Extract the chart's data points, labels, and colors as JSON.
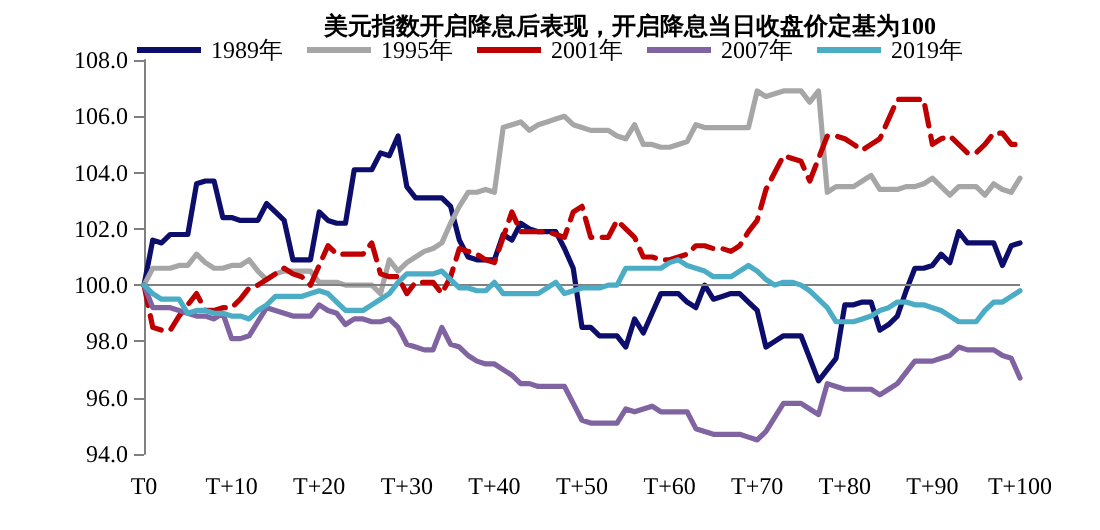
{
  "chart_data": {
    "type": "line",
    "title": "美元指数开启降息后表现，开启降息当日收盘价定基为100",
    "categories": [
      "T0",
      null,
      null,
      null,
      null,
      null,
      null,
      null,
      null,
      null,
      "T+10",
      null,
      null,
      null,
      null,
      null,
      null,
      null,
      null,
      null,
      "T+20",
      null,
      null,
      null,
      null,
      null,
      null,
      null,
      null,
      null,
      "T+30",
      null,
      null,
      null,
      null,
      null,
      null,
      null,
      null,
      null,
      "T+40",
      null,
      null,
      null,
      null,
      null,
      null,
      null,
      null,
      null,
      "T+50",
      null,
      null,
      null,
      null,
      null,
      null,
      null,
      null,
      null,
      "T+60",
      null,
      null,
      null,
      null,
      null,
      null,
      null,
      null,
      null,
      "T+70",
      null,
      null,
      null,
      null,
      null,
      null,
      null,
      null,
      null,
      "T+80",
      null,
      null,
      null,
      null,
      null,
      null,
      null,
      null,
      null,
      "T+90",
      null,
      null,
      null,
      null,
      null,
      null,
      null,
      null,
      null,
      "T+100"
    ],
    "ylim": [
      94,
      108
    ],
    "yticks": [
      {
        "value": 94,
        "label": "94.0"
      },
      {
        "value": 96,
        "label": "96.0"
      },
      {
        "value": 98,
        "label": "98.0"
      },
      {
        "value": 100,
        "label": "100.0"
      },
      {
        "value": 102,
        "label": "102.0"
      },
      {
        "value": 104,
        "label": "104.0"
      },
      {
        "value": 106,
        "label": "106.0"
      },
      {
        "value": 108,
        "label": "108.0"
      }
    ],
    "grid": false,
    "legend": "top",
    "marker": "none",
    "ref_lines": [
      {
        "axis": "y",
        "value": 100,
        "label": null,
        "color": "#808080"
      }
    ],
    "series": [
      {
        "name": "1989年",
        "color": "#0d0d6b",
        "line_style": "solid",
        "values": [
          100,
          101.6,
          101.5,
          101.8,
          101.8,
          101.8,
          103.6,
          103.7,
          103.7,
          102.4,
          102.4,
          102.3,
          102.3,
          102.3,
          102.9,
          102.6,
          102.3,
          100.9,
          100.9,
          100.9,
          102.6,
          102.3,
          102.2,
          102.2,
          104.1,
          104.1,
          104.1,
          104.7,
          104.6,
          105.3,
          103.5,
          103.1,
          103.1,
          103.1,
          103.1,
          102.8,
          101.6,
          101.0,
          100.9,
          100.9,
          100.9,
          101.8,
          101.6,
          102.2,
          102.0,
          101.9,
          101.9,
          101.9,
          101.3,
          100.6,
          98.5,
          98.5,
          98.2,
          98.2,
          98.2,
          97.8,
          98.8,
          98.3,
          99.0,
          99.7,
          99.7,
          99.7,
          99.4,
          99.2,
          100.0,
          99.5,
          99.6,
          99.7,
          99.7,
          99.4,
          99.1,
          97.8,
          98.0,
          98.2,
          98.2,
          98.2,
          97.4,
          96.6,
          97.0,
          97.4,
          99.3,
          99.3,
          99.4,
          99.4,
          98.4,
          98.6,
          98.9,
          99.8,
          100.6,
          100.6,
          100.7,
          101.1,
          100.8,
          101.9,
          101.5,
          101.5,
          101.5,
          101.5,
          100.7,
          101.4,
          101.5
        ]
      },
      {
        "name": "1995年",
        "color": "#a6a6a6",
        "line_style": "solid",
        "values": [
          100,
          100.6,
          100.6,
          100.6,
          100.7,
          100.7,
          101.1,
          100.8,
          100.6,
          100.6,
          100.7,
          100.7,
          100.9,
          100.5,
          100.2,
          100.4,
          100.5,
          100.5,
          100.5,
          100.5,
          100.1,
          100.1,
          100.1,
          100.0,
          100.0,
          100.0,
          100.0,
          99.7,
          100.9,
          100.5,
          100.8,
          101.0,
          101.2,
          101.3,
          101.5,
          102.2,
          102.8,
          103.3,
          103.3,
          103.4,
          103.3,
          105.6,
          105.7,
          105.8,
          105.5,
          105.7,
          105.8,
          105.9,
          106.0,
          105.7,
          105.6,
          105.5,
          105.5,
          105.5,
          105.3,
          105.2,
          105.7,
          105.0,
          105.0,
          104.9,
          104.9,
          105.0,
          105.1,
          105.7,
          105.6,
          105.6,
          105.6,
          105.6,
          105.6,
          105.6,
          106.9,
          106.7,
          106.8,
          106.9,
          106.9,
          106.9,
          106.5,
          106.9,
          103.3,
          103.5,
          103.5,
          103.5,
          103.7,
          103.9,
          103.4,
          103.4,
          103.4,
          103.5,
          103.5,
          103.6,
          103.8,
          103.5,
          103.2,
          103.5,
          103.5,
          103.5,
          103.2,
          103.6,
          103.4,
          103.3,
          103.8
        ]
      },
      {
        "name": "2001年",
        "color": "#c00000",
        "line_style": "dashed",
        "values": [
          100,
          98.5,
          98.4,
          98.4,
          98.9,
          99.3,
          99.7,
          99.1,
          99.1,
          99.2,
          99.2,
          99.5,
          99.9,
          100.0,
          100.2,
          100.4,
          100.6,
          100.4,
          100.3,
          100.0,
          100.7,
          101.4,
          101.1,
          101.1,
          101.1,
          101.1,
          101.5,
          100.4,
          100.3,
          100.3,
          99.7,
          100.1,
          100.1,
          100.1,
          99.7,
          100.3,
          101.3,
          101.2,
          101.1,
          100.9,
          100.8,
          101.7,
          102.6,
          101.9,
          101.9,
          101.9,
          101.9,
          101.8,
          101.7,
          102.6,
          102.8,
          101.7,
          101.7,
          101.7,
          102.3,
          102.0,
          101.7,
          101.0,
          101.0,
          100.9,
          100.9,
          101.0,
          101.1,
          101.4,
          101.4,
          101.3,
          101.3,
          101.2,
          101.4,
          101.9,
          102.3,
          103.4,
          104.0,
          104.6,
          104.5,
          104.4,
          103.7,
          104.5,
          105.3,
          105.3,
          105.2,
          105.0,
          104.8,
          105.0,
          105.2,
          105.9,
          106.6,
          106.6,
          106.6,
          106.6,
          105.0,
          105.2,
          105.3,
          105.0,
          104.7,
          104.7,
          105.0,
          105.4,
          105.4,
          105.0,
          105.0
        ]
      },
      {
        "name": "2007年",
        "color": "#8064a2",
        "line_style": "solid",
        "values": [
          100,
          99.2,
          99.2,
          99.2,
          99.1,
          99.0,
          98.9,
          98.9,
          98.8,
          99.0,
          98.1,
          98.1,
          98.2,
          98.7,
          99.2,
          99.1,
          99.0,
          98.9,
          98.9,
          98.9,
          99.3,
          99.1,
          99.0,
          98.6,
          98.8,
          98.8,
          98.7,
          98.7,
          98.8,
          98.5,
          97.9,
          97.8,
          97.7,
          97.7,
          98.5,
          97.9,
          97.8,
          97.5,
          97.3,
          97.2,
          97.2,
          97.0,
          96.8,
          96.5,
          96.5,
          96.4,
          96.4,
          96.4,
          96.4,
          95.8,
          95.2,
          95.1,
          95.1,
          95.1,
          95.1,
          95.6,
          95.5,
          95.6,
          95.7,
          95.5,
          95.5,
          95.5,
          95.5,
          94.9,
          94.8,
          94.7,
          94.7,
          94.7,
          94.7,
          94.6,
          94.5,
          94.8,
          95.3,
          95.8,
          95.8,
          95.8,
          95.6,
          95.4,
          96.5,
          96.4,
          96.3,
          96.3,
          96.3,
          96.3,
          96.1,
          96.3,
          96.5,
          96.9,
          97.3,
          97.3,
          97.3,
          97.4,
          97.5,
          97.8,
          97.7,
          97.7,
          97.7,
          97.7,
          97.5,
          97.4,
          96.7
        ]
      },
      {
        "name": "2019年",
        "color": "#4bacc6",
        "line_style": "solid",
        "values": [
          100,
          99.7,
          99.5,
          99.5,
          99.5,
          99.0,
          99.1,
          99.1,
          99.0,
          99.0,
          98.9,
          98.9,
          98.8,
          99.1,
          99.3,
          99.6,
          99.6,
          99.6,
          99.6,
          99.7,
          99.8,
          99.7,
          99.4,
          99.1,
          99.1,
          99.1,
          99.3,
          99.5,
          99.7,
          100.1,
          100.4,
          100.4,
          100.4,
          100.4,
          100.5,
          100.2,
          99.9,
          99.9,
          99.8,
          99.8,
          100.1,
          99.7,
          99.7,
          99.7,
          99.7,
          99.7,
          99.9,
          100.1,
          99.7,
          99.8,
          99.9,
          99.9,
          99.9,
          100.0,
          100.0,
          100.6,
          100.6,
          100.6,
          100.6,
          100.6,
          100.8,
          100.9,
          100.7,
          100.6,
          100.5,
          100.3,
          100.3,
          100.3,
          100.5,
          100.7,
          100.5,
          100.2,
          100.0,
          100.1,
          100.1,
          100.0,
          99.8,
          99.5,
          99.2,
          98.7,
          98.7,
          98.7,
          98.8,
          98.9,
          99.1,
          99.2,
          99.4,
          99.4,
          99.3,
          99.3,
          99.2,
          99.1,
          98.9,
          98.7,
          98.7,
          98.7,
          99.1,
          99.4,
          99.4,
          99.6,
          99.8
        ]
      }
    ]
  }
}
